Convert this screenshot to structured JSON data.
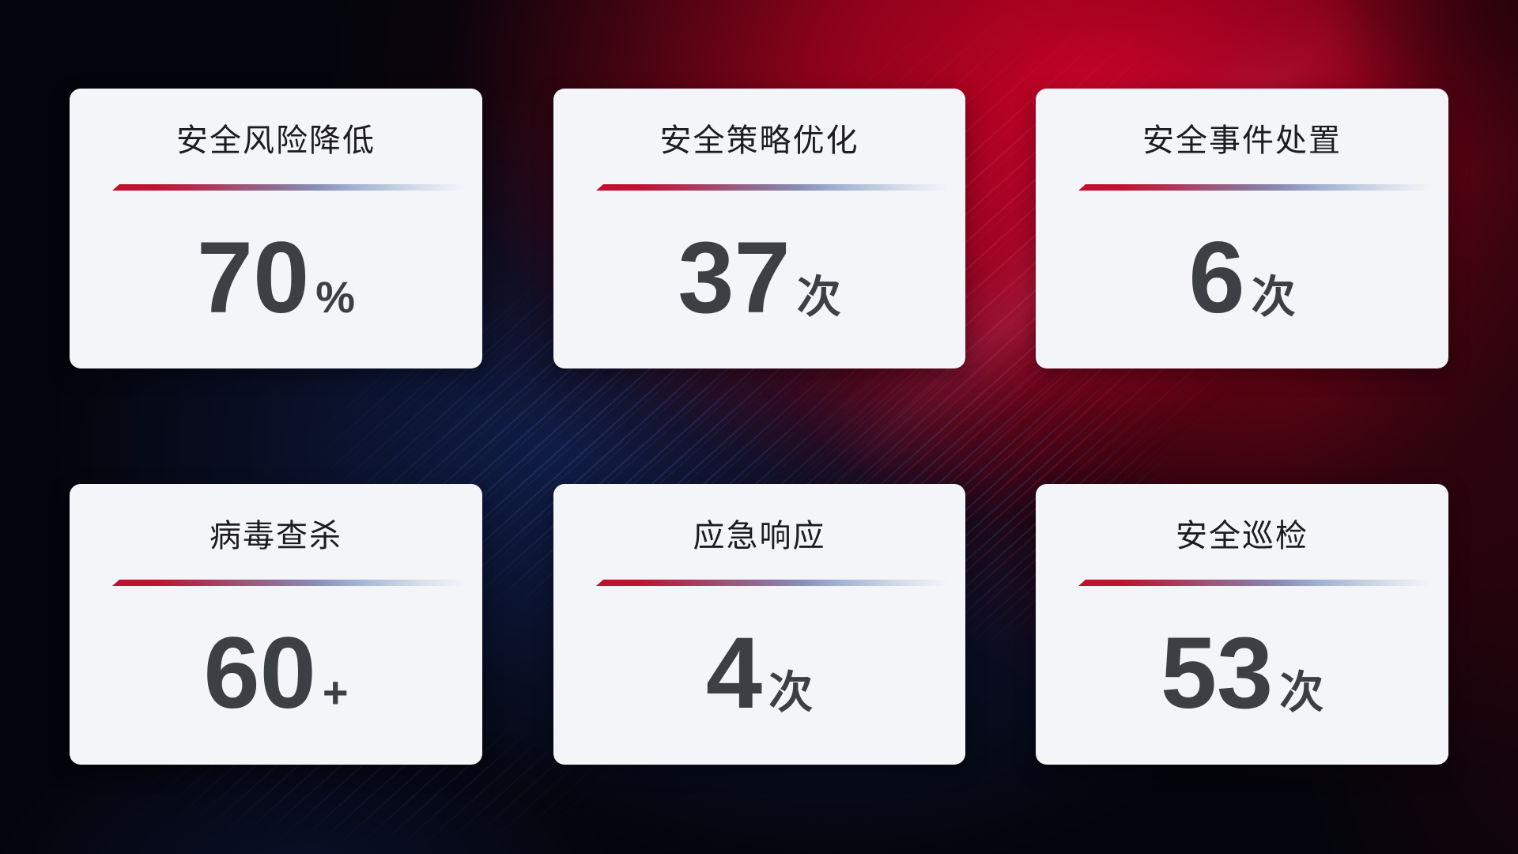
{
  "theme": {
    "card_background": "#f4f5f9",
    "title_color": "#1d1d1f",
    "number_color": "#3c4045",
    "divider_red": "#c20f2f",
    "divider_blue": "#9fb0d2",
    "background_base": "#04050c",
    "background_red_glow": "#c60326",
    "background_blue_glow": "#111e4a"
  },
  "cards": [
    {
      "title": "安全风险降低",
      "value": "70",
      "unit": "%"
    },
    {
      "title": "安全策略优化",
      "value": "37",
      "unit": "次"
    },
    {
      "title": "安全事件处置",
      "value": "6",
      "unit": "次"
    },
    {
      "title": "病毒查杀",
      "value": "60",
      "unit": "+"
    },
    {
      "title": "应急响应",
      "value": "4",
      "unit": "次"
    },
    {
      "title": "安全巡检",
      "value": "53",
      "unit": "次"
    }
  ]
}
